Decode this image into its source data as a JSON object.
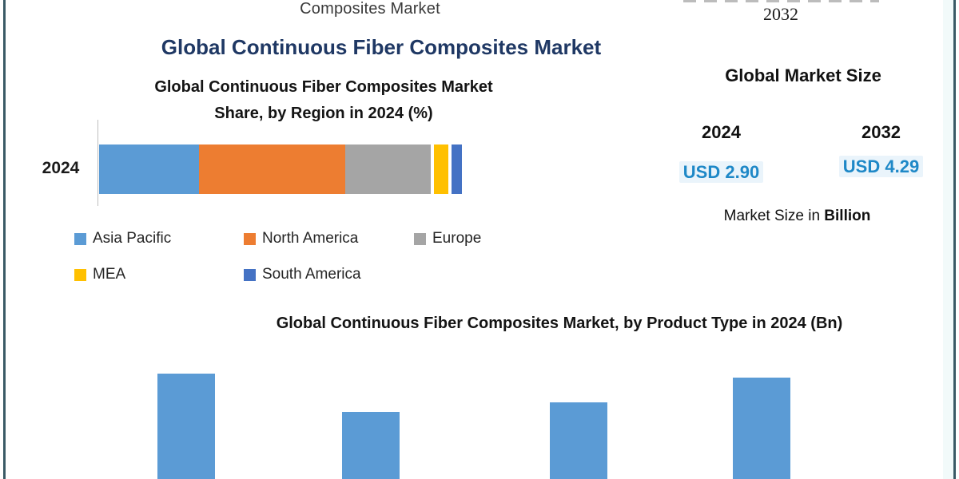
{
  "page": {
    "top_caption_tail": "Composites Market",
    "top_right_year": "2032",
    "main_title": "Global Continuous Fiber Composites Market"
  },
  "market_size_panel": {
    "title": "Global Market Size",
    "columns": [
      {
        "year": "2024",
        "value": "USD 2.90"
      },
      {
        "year": "2032",
        "value": "USD 4.29"
      }
    ],
    "footnote_regular": "Market Size in ",
    "footnote_bold": "Billion"
  },
  "chart_data": [
    {
      "type": "bar",
      "orientation": "horizontal-stacked",
      "title": "Global Continuous Fiber Composites Market Share, by Region in 2024 (%)",
      "title_lines": [
        "Global Continuous Fiber Composites Market",
        "Share, by Region in 2024 (%)"
      ],
      "categories": [
        "2024"
      ],
      "unit": "%",
      "xlim": [
        0,
        100
      ],
      "grid": false,
      "legend_position": "bottom",
      "series": [
        {
          "name": "Asia Pacific",
          "color": "#5B9BD5",
          "values": [
            28
          ]
        },
        {
          "name": "North America",
          "color": "#ED7D31",
          "values": [
            41
          ]
        },
        {
          "name": "Europe",
          "color": "#A5A5A5",
          "values": [
            24
          ]
        },
        {
          "name": "MEA",
          "color": "#FFC000",
          "values": [
            4
          ]
        },
        {
          "name": "South America",
          "color": "#4472C4",
          "values": [
            3
          ]
        }
      ],
      "legend_rows": [
        [
          0,
          1,
          2
        ],
        [
          3,
          4
        ]
      ]
    },
    {
      "type": "bar",
      "orientation": "vertical",
      "title": "Global Continuous Fiber Composites Market, by Product Type in 2024 (Bn)",
      "bar_color": "#5B9BD5",
      "categories": [
        "",
        "",
        "",
        ""
      ],
      "values_relative": [
        1.0,
        0.64,
        0.73,
        0.96
      ],
      "note": "Chart cropped at bottom edge of screenshot; axis, value labels and category labels not visible"
    }
  ],
  "colors": {
    "frame_border": "#3A5A66",
    "main_title": "#1F3864",
    "heading_text": "#141414",
    "usd_value": "#1E88C7",
    "primary_bar": "#5B9BD5"
  }
}
